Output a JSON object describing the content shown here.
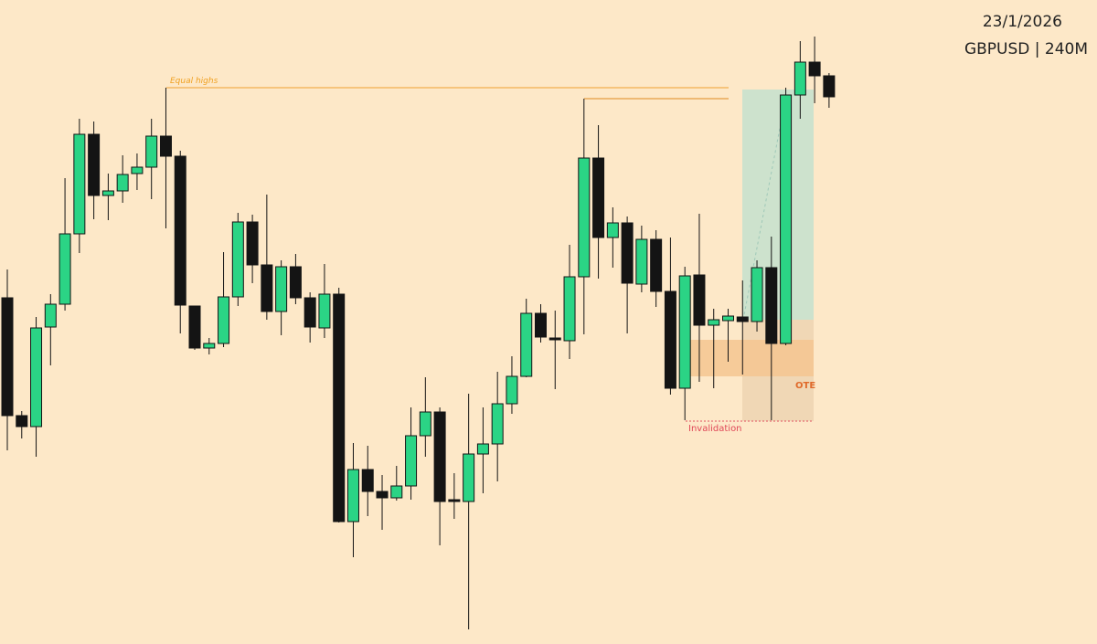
{
  "chart_data": {
    "type": "candlestick",
    "title": "23/1/2026",
    "subtitle": "GBPUSD | 240M",
    "annotations": {
      "equal_highs": "Equal highs",
      "ote": "OTE",
      "invalidation": "Invalidation"
    },
    "up_color": "#2bd485",
    "down_color": "#141414",
    "ylim": [
      0,
      705
    ],
    "open": [
      379,
      250,
      238,
      347,
      372,
      449,
      558,
      491,
      496,
      515,
      522,
      556,
      534,
      370,
      324,
      329,
      380,
      462,
      415,
      364,
      413,
      379,
      346,
      383,
      134,
      191,
      167,
      160,
      173,
      228,
      254,
      158,
      156,
      208,
      219,
      263,
      293,
      362,
      335,
      332,
      402,
      532,
      445,
      461,
      394,
      443,
      386,
      280,
      404,
      349,
      354,
      358,
      353,
      412,
      329,
      601,
      637,
      622
    ],
    "high": [
      410,
      255,
      358,
      383,
      510,
      575,
      572,
      515,
      535,
      537,
      575,
      609,
      540,
      370,
      335,
      429,
      472,
      470,
      492,
      420,
      427,
      385,
      416,
      390,
      220,
      217,
      185,
      195,
      259,
      292,
      259,
      187,
      274,
      259,
      298,
      315,
      378,
      372,
      365,
      437,
      597,
      568,
      478,
      468,
      458,
      453,
      445,
      413,
      471,
      367,
      367,
      398,
      420,
      446,
      609,
      660,
      665,
      625
    ],
    "low": [
      212,
      225,
      205,
      305,
      365,
      428,
      465,
      464,
      483,
      497,
      487,
      455,
      340,
      322,
      317,
      325,
      370,
      395,
      355,
      338,
      372,
      330,
      335,
      133,
      95,
      140,
      125,
      157,
      158,
      205,
      108,
      137,
      16,
      165,
      178,
      252,
      292,
      330,
      279,
      312,
      339,
      400,
      412,
      340,
      385,
      369,
      273,
      245,
      287,
      280,
      309,
      295,
      342,
      245,
      327,
      575,
      592,
      587
    ],
    "close": [
      250,
      238,
      346,
      372,
      449,
      558,
      491,
      496,
      514,
      522,
      556,
      534,
      371,
      324,
      329,
      380,
      462,
      415,
      364,
      413,
      379,
      347,
      383,
      134,
      191,
      167,
      160,
      173,
      228,
      254,
      156,
      156,
      208,
      219,
      263,
      293,
      362,
      336,
      333,
      402,
      532,
      445,
      461,
      395,
      443,
      386,
      280,
      403,
      349,
      355,
      359,
      353,
      412,
      329,
      601,
      637,
      622,
      599
    ]
  }
}
